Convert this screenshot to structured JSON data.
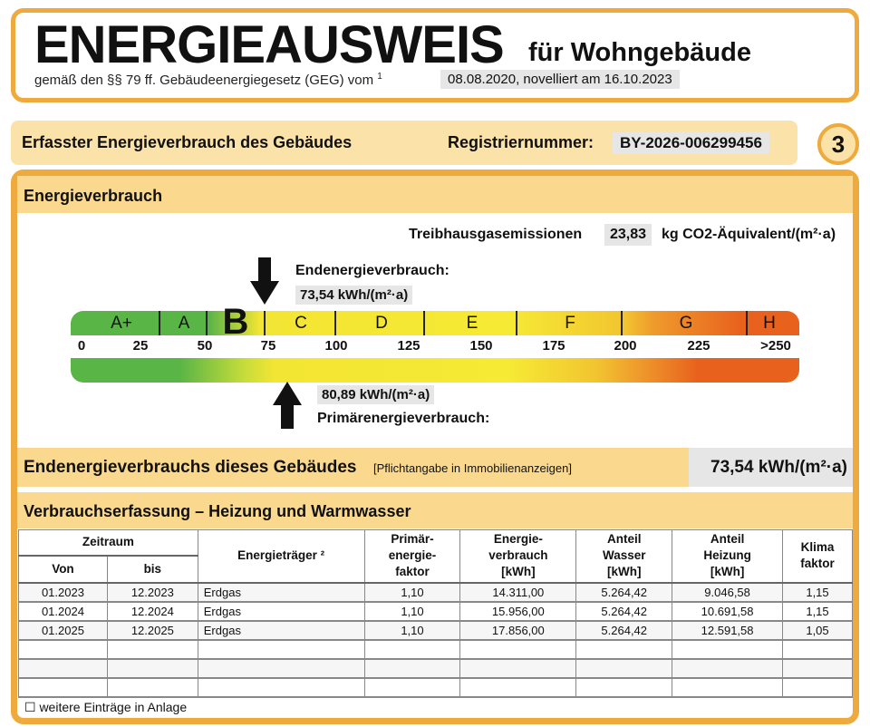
{
  "header": {
    "title": "ENERGIEAUSWEIS",
    "subtitle": "für Wohngebäude",
    "law": "gemäß den §§ 79 ff. Gebäudeenergiegesetz (GEG) vom",
    "footnote": "1",
    "date": "08.08.2020, novelliert am 16.10.2023"
  },
  "section_bar": {
    "label": "Erfasster Energieverbrauch des Gebäudes",
    "reg_label": "Registriernummer:",
    "reg_number": "BY-2026-006299456",
    "page": "3"
  },
  "energy": {
    "title": "Energieverbrauch",
    "ghg_label": "Treibhausgasemissionen",
    "ghg_value": "23,83",
    "ghg_unit": "kg CO2-Äquivalent/(m²·a)",
    "end_label": "Endenergieverbrauch:",
    "end_value": "73,54 kWh/(m²·a)",
    "end_numeric": 73.54,
    "primary_value": "80,89 kWh/(m²·a)",
    "primary_label": "Primärenergieverbrauch:",
    "primary_numeric": 80.89,
    "classes": [
      "A+",
      "A",
      "B",
      "C",
      "D",
      "E",
      "F",
      "G",
      "H"
    ],
    "current_class": "B",
    "ticks": [
      "0",
      "25",
      "50",
      "75",
      "100",
      "125",
      "150",
      "175",
      "200",
      "225",
      ">250"
    ]
  },
  "summary": {
    "label": "Endenergieverbrauchs dieses Gebäudes",
    "note": "[Pflichtangabe in Immobilienanzeigen]",
    "value": "73,54 kWh/(m²·a)"
  },
  "table": {
    "title": "Verbrauchserfassung – Heizung und Warmwasser",
    "headers": {
      "period": "Zeitraum",
      "from": "Von",
      "to": "bis",
      "carrier": "Energieträger ²",
      "pef": "Primär-\nenergie-\nfaktor",
      "consumption": "Energie-\nverbrauch\n[kWh]",
      "water": "Anteil\nWasser\n[kWh]",
      "heating": "Anteil\nHeizung\n[kWh]",
      "climate": "Klima\nfaktor"
    },
    "rows": [
      [
        "01.2023",
        "12.2023",
        "Erdgas",
        "1,10",
        "14.311,00",
        "5.264,42",
        "9.046,58",
        "1,15"
      ],
      [
        "01.2024",
        "12.2024",
        "Erdgas",
        "1,10",
        "15.956,00",
        "5.264,42",
        "10.691,58",
        "1,15"
      ],
      [
        "01.2025",
        "12.2025",
        "Erdgas",
        "1,10",
        "17.856,00",
        "5.264,42",
        "12.591,58",
        "1,05"
      ]
    ],
    "empty_rows": 3,
    "footer": "☐ weitere Einträge in Anlage"
  }
}
